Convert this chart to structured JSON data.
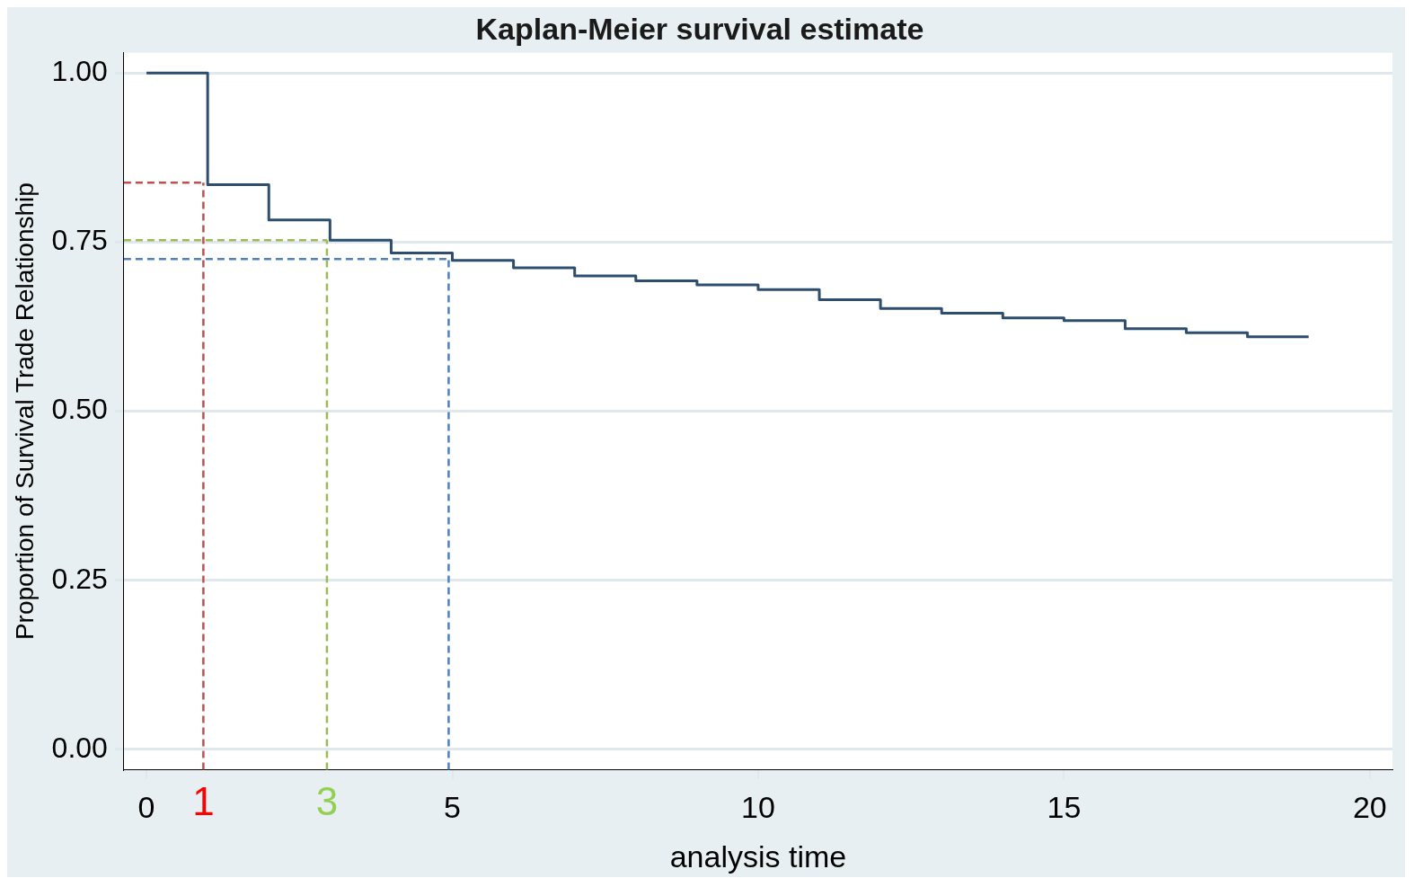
{
  "chart_data": {
    "type": "step",
    "title": "Kaplan-Meier survival estimate",
    "xlabel": "analysis time",
    "ylabel": "Proportion of Survival Trade Relationship",
    "x": [
      0,
      1,
      2,
      3,
      4,
      5,
      6,
      7,
      8,
      9,
      10,
      11,
      12,
      13,
      14,
      15,
      16,
      17,
      18,
      19
    ],
    "series": [
      {
        "color": "#2d4e6e",
        "values": [
          1.0,
          0.835,
          0.783,
          0.753,
          0.734,
          0.723,
          0.712,
          0.7,
          0.693,
          0.687,
          0.68,
          0.665,
          0.652,
          0.645,
          0.638,
          0.634,
          0.622,
          0.616,
          0.61,
          0.61
        ]
      },
      {
        "type": "line",
        "color": "#c0504d",
        "line_style": "dashed",
        "x": [
          -0.37,
          0.93
        ],
        "values": [
          0.838,
          0.838
        ]
      },
      {
        "type": "line",
        "color": "#9bbb59",
        "line_style": "dashed",
        "x": [
          -0.37,
          2.95
        ],
        "values": [
          0.753,
          0.753
        ]
      },
      {
        "type": "line",
        "color": "#4f81bd",
        "line_style": "dashed",
        "x": [
          -0.37,
          4.94
        ],
        "values": [
          0.725,
          0.725
        ]
      }
    ],
    "xlim": [
      -0.37,
      20.37
    ],
    "xticks": [
      0,
      5,
      10,
      15,
      20
    ],
    "ylim": [
      -0.03,
      1.03
    ],
    "yticks": [
      {
        "value": 0,
        "label": "0.00"
      },
      {
        "value": 0.25,
        "label": "0.25"
      },
      {
        "value": 0.5,
        "label": "0.50"
      },
      {
        "value": 0.75,
        "label": "0.75"
      },
      {
        "value": 1,
        "label": "1.00"
      }
    ],
    "grid": "y",
    "legend": false,
    "marker": "none",
    "line_style": "solid",
    "ref_lines": [
      {
        "axis": "x",
        "value": 0.93,
        "label": "1",
        "color": "#c0504d",
        "line_style": "dashed"
      },
      {
        "axis": "x",
        "value": 2.95,
        "label": "3",
        "color": "#9bbb59",
        "line_style": "dashed"
      },
      {
        "axis": "x",
        "value": 4.94,
        "label": null,
        "color": "#4f81bd",
        "line_style": "dashed"
      }
    ]
  }
}
